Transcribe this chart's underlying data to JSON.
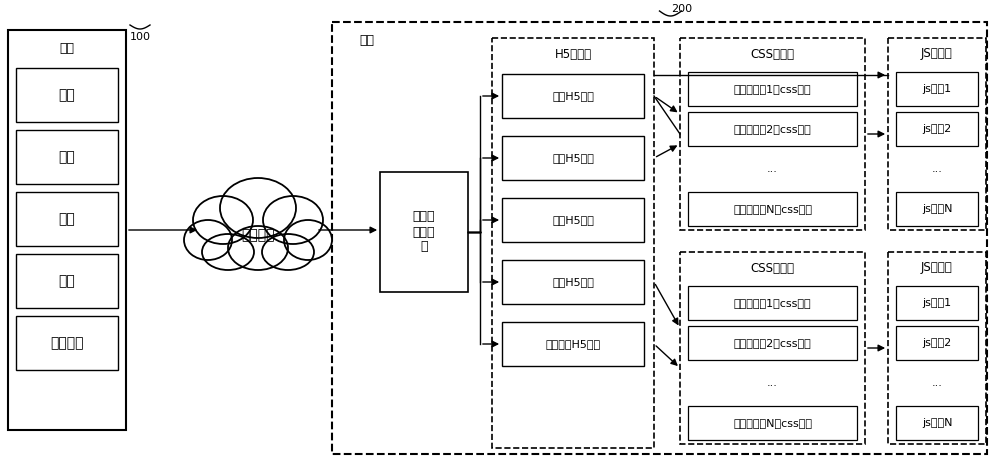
{
  "bg_color": "#ffffff",
  "title_label": "200",
  "label_100": "100",
  "label_backend": "后台",
  "terminal_group_label": "终端",
  "terminal_items": [
    "手机",
    "电视",
    "冰筱",
    "魔镜",
    "其它终端"
  ],
  "cloud_label": "通信网络",
  "adaptive_label": "自适应\n选择框\n架",
  "h5_lib_label": "H5模板库",
  "h5_items": [
    "手机H5模板",
    "电视H5模板",
    "冰筱H5模板",
    "魔镜H5模板",
    "其它终端H5模板"
  ],
  "css_lib_label": "CSS渲染库",
  "css_items": [
    "适用分辨獷1的css文件",
    "适用分辨獷2的css文件",
    "...",
    "适用分辨率N的css文件"
  ],
  "js_lib_label": "JS脚本库",
  "js_items": [
    "js文件1",
    "js文件2",
    "...",
    "js文件N"
  ]
}
